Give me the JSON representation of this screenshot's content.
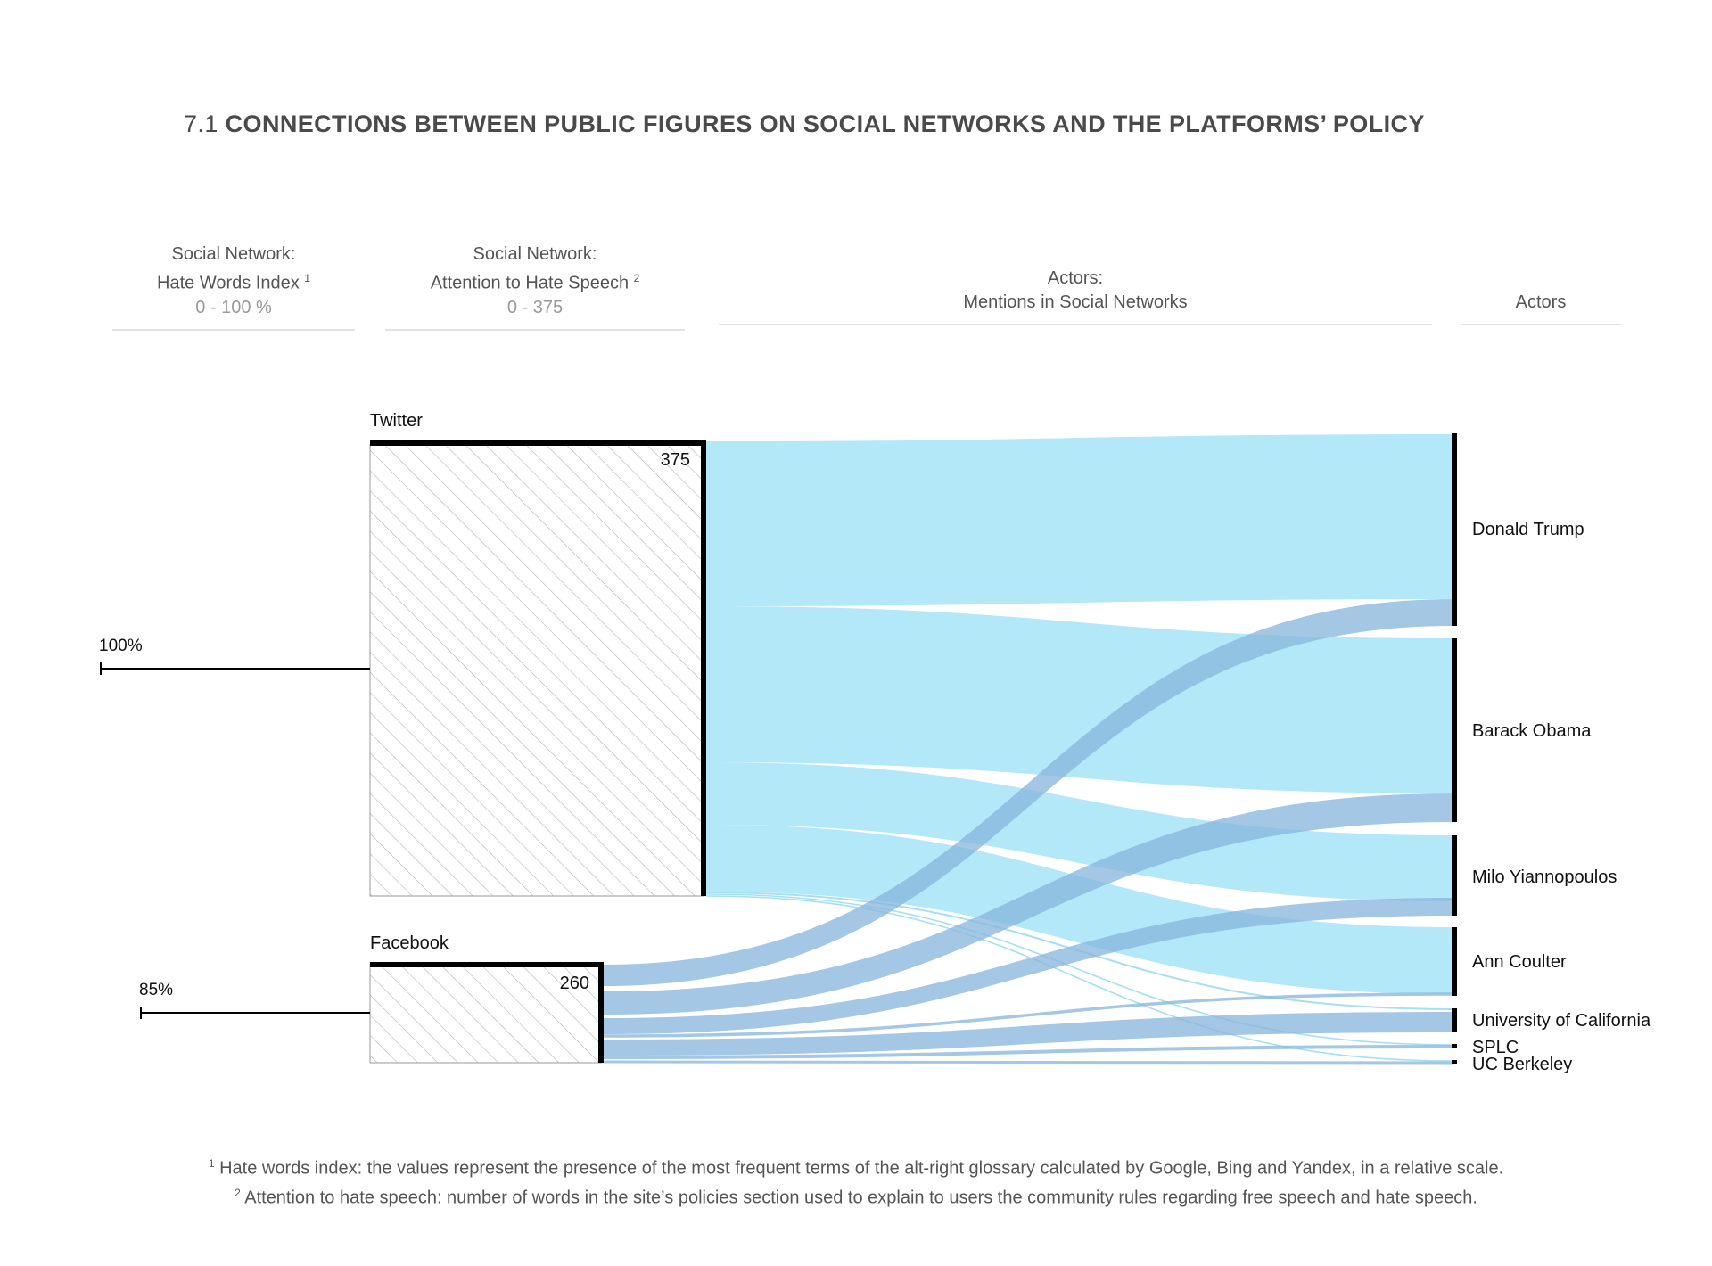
{
  "title": {
    "number": "7.1",
    "text": "CONNECTIONS BETWEEN PUBLIC FIGURES ON SOCIAL NETWORKS AND THE PLATFORMS’ POLICY"
  },
  "columns": {
    "hate_index": {
      "line1": "Social Network:",
      "line2": "Hate Words Index",
      "sup": "1",
      "range": "0 - 100 %"
    },
    "attention": {
      "line1": "Social Network:",
      "line2": "Attention to Hate Speech",
      "sup": "2",
      "range": "0 - 375"
    },
    "mentions": {
      "line1": "Actors:",
      "line2": "Mentions in Social Networks"
    },
    "actors": {
      "line1": "Actors"
    }
  },
  "networks": [
    {
      "name": "Twitter",
      "hate_index_label": "100%",
      "hate_index": 100,
      "attention_label": "375",
      "attention": 375
    },
    {
      "name": "Facebook",
      "hate_index_label": "85%",
      "hate_index": 85,
      "attention_label": "260",
      "attention": 260
    }
  ],
  "actors": [
    "Donald Trump",
    "Barack Obama",
    "Milo Yiannopoulos",
    "Ann Coulter",
    "University of California",
    "SPLC",
    "UC Berkeley"
  ],
  "colors": {
    "twitter_flow": "#b3e8f9",
    "facebook_flow": "#8ab8dd",
    "bar": "#000000",
    "hatch": "#b5b5b5"
  },
  "footnotes": {
    "note1": {
      "sup": "1",
      "text": "Hate words index: the values represent the presence of the most frequent terms of the alt-right glossary calculated by Google, Bing and Yandex, in a relative scale."
    },
    "note2": {
      "sup": "2",
      "text": "Attention to hate speech: number of words in the site’s policies section used to explain to users the community rules regarding free speech and hate speech."
    }
  }
}
